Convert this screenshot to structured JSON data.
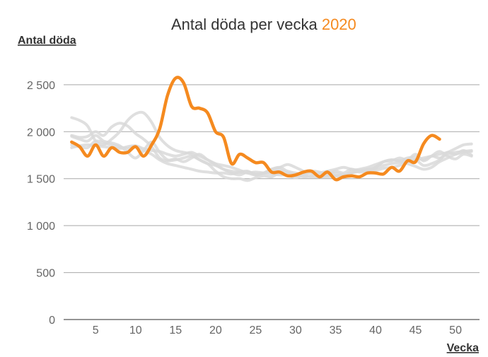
{
  "chart_data": {
    "type": "line",
    "title": "Antal döda per vecka",
    "title_highlight": "2020",
    "ylabel": "Antal döda",
    "xlabel": "Vecka",
    "xlim": [
      1,
      53
    ],
    "ylim": [
      0,
      2800
    ],
    "xticks": [
      5,
      10,
      15,
      20,
      25,
      30,
      35,
      40,
      45,
      50
    ],
    "yticks": [
      0,
      500,
      1000,
      1500,
      2000,
      2500
    ],
    "ytick_labels": [
      "0",
      "500",
      "1 000",
      "1 500",
      "2 000",
      "2 500"
    ],
    "grid": true,
    "highlight_color": "#f58a1f",
    "background_color": "#d9d9d9",
    "highlight_series": {
      "name": "2020",
      "x": [
        2,
        3,
        4,
        5,
        6,
        7,
        8,
        9,
        10,
        11,
        12,
        13,
        14,
        15,
        16,
        17,
        18,
        19,
        20,
        21,
        22,
        23,
        24,
        25,
        26,
        27,
        28,
        29,
        30,
        31,
        32,
        33,
        34,
        35,
        36,
        37,
        38,
        39,
        40,
        41,
        42,
        43,
        44,
        45,
        46,
        47,
        48
      ],
      "values": [
        1890,
        1840,
        1740,
        1860,
        1740,
        1830,
        1780,
        1780,
        1840,
        1740,
        1860,
        2030,
        2390,
        2570,
        2520,
        2270,
        2250,
        2200,
        2000,
        1940,
        1660,
        1760,
        1720,
        1670,
        1670,
        1570,
        1570,
        1530,
        1540,
        1570,
        1580,
        1520,
        1570,
        1490,
        1520,
        1530,
        1520,
        1560,
        1560,
        1550,
        1620,
        1580,
        1690,
        1680,
        1870,
        1960,
        1920
      ]
    },
    "background_series": [
      {
        "x": [
          2,
          3,
          4,
          5,
          6,
          7,
          8,
          9,
          10,
          11,
          12,
          13,
          14,
          15,
          16,
          17,
          18,
          19,
          20,
          21,
          22,
          23,
          24,
          25,
          26,
          27,
          28,
          29,
          30,
          31,
          32,
          33,
          34,
          35,
          36,
          37,
          38,
          39,
          40,
          41,
          42,
          43,
          44,
          45,
          46,
          47,
          48,
          49,
          50,
          51,
          52
        ],
        "values": [
          2150,
          2120,
          2060,
          1900,
          1860,
          1920,
          2000,
          2120,
          2190,
          2200,
          2100,
          1940,
          1850,
          1800,
          1780,
          1760,
          1700,
          1660,
          1640,
          1600,
          1580,
          1570,
          1560,
          1570,
          1560,
          1550,
          1540,
          1540,
          1530,
          1530,
          1520,
          1520,
          1520,
          1530,
          1540,
          1560,
          1580,
          1590,
          1610,
          1640,
          1660,
          1670,
          1690,
          1700,
          1720,
          1740,
          1760,
          1780,
          1820,
          1860,
          1870
        ]
      },
      {
        "x": [
          2,
          3,
          4,
          5,
          6,
          7,
          8,
          9,
          10,
          11,
          12,
          13,
          14,
          15,
          16,
          17,
          18,
          19,
          20,
          21,
          22,
          23,
          24,
          25,
          26,
          27,
          28,
          29,
          30,
          31,
          32,
          33,
          34,
          35,
          36,
          37,
          38,
          39,
          40,
          41,
          42,
          43,
          44,
          45,
          46,
          47,
          48,
          49,
          50,
          51,
          52
        ],
        "values": [
          1960,
          1940,
          1950,
          2000,
          1960,
          2050,
          2090,
          2060,
          1980,
          1920,
          1840,
          1720,
          1690,
          1700,
          1720,
          1740,
          1700,
          1660,
          1580,
          1520,
          1500,
          1500,
          1480,
          1510,
          1530,
          1520,
          1560,
          1540,
          1510,
          1540,
          1560,
          1520,
          1540,
          1530,
          1520,
          1580,
          1600,
          1620,
          1650,
          1680,
          1700,
          1690,
          1660,
          1630,
          1600,
          1620,
          1680,
          1720,
          1760,
          1780,
          1790
        ]
      },
      {
        "x": [
          2,
          3,
          4,
          5,
          6,
          7,
          8,
          9,
          10,
          11,
          12,
          13,
          14,
          15,
          16,
          17,
          18,
          19,
          20,
          21,
          22,
          23,
          24,
          25,
          26,
          27,
          28,
          29,
          30,
          31,
          32,
          33,
          34,
          35,
          36,
          37,
          38,
          39,
          40,
          41,
          42,
          43,
          44,
          45,
          46,
          47,
          48,
          49,
          50,
          51,
          52
        ],
        "values": [
          1830,
          1850,
          1860,
          1850,
          1840,
          1830,
          1820,
          1840,
          1850,
          1820,
          1800,
          1790,
          1760,
          1740,
          1760,
          1780,
          1740,
          1700,
          1660,
          1640,
          1620,
          1590,
          1560,
          1540,
          1560,
          1580,
          1590,
          1560,
          1540,
          1520,
          1530,
          1560,
          1580,
          1600,
          1620,
          1600,
          1590,
          1600,
          1620,
          1680,
          1700,
          1690,
          1720,
          1730,
          1700,
          1740,
          1720,
          1760,
          1780,
          1790,
          1800
        ]
      },
      {
        "x": [
          2,
          3,
          4,
          5,
          6,
          7,
          8,
          9,
          10,
          11,
          12,
          13,
          14,
          15,
          16,
          17,
          18,
          19,
          20,
          21,
          22,
          23,
          24,
          25,
          26,
          27,
          28,
          29,
          30,
          31,
          32,
          33,
          34,
          35,
          36,
          37,
          38,
          39,
          40,
          41,
          42,
          43,
          44,
          45,
          46,
          47,
          48,
          49,
          50,
          51,
          52
        ],
        "values": [
          1950,
          1920,
          1900,
          1960,
          1900,
          1880,
          1850,
          1780,
          1720,
          1800,
          1890,
          1780,
          1700,
          1710,
          1680,
          1720,
          1760,
          1700,
          1650,
          1600,
          1560,
          1540,
          1570,
          1550,
          1560,
          1600,
          1620,
          1580,
          1560,
          1550,
          1580,
          1570,
          1540,
          1580,
          1560,
          1600,
          1570,
          1580,
          1620,
          1680,
          1690,
          1720,
          1700,
          1760,
          1690,
          1740,
          1790,
          1740,
          1710,
          1760,
          1740
        ]
      },
      {
        "x": [
          2,
          3,
          4,
          5,
          6,
          7,
          8,
          9,
          10,
          11,
          12,
          13,
          14,
          15,
          16,
          17,
          18,
          19,
          20,
          21,
          22,
          23,
          24,
          25,
          26,
          27,
          28,
          29,
          30,
          31,
          32,
          33,
          34,
          35,
          36,
          37,
          38,
          39,
          40,
          41,
          42,
          43,
          44,
          45,
          46,
          47,
          48,
          49,
          50,
          51,
          52
        ],
        "values": [
          1860,
          1840,
          1830,
          1900,
          1880,
          1860,
          1840,
          1820,
          1840,
          1800,
          1760,
          1700,
          1660,
          1640,
          1620,
          1600,
          1580,
          1570,
          1560,
          1560,
          1550,
          1570,
          1580,
          1540,
          1560,
          1600,
          1620,
          1650,
          1620,
          1580,
          1560,
          1540,
          1550,
          1560,
          1540,
          1560,
          1580,
          1600,
          1590,
          1610,
          1620,
          1640,
          1680,
          1700,
          1640,
          1660,
          1700,
          1780,
          1760,
          1800,
          1750
        ]
      }
    ]
  }
}
